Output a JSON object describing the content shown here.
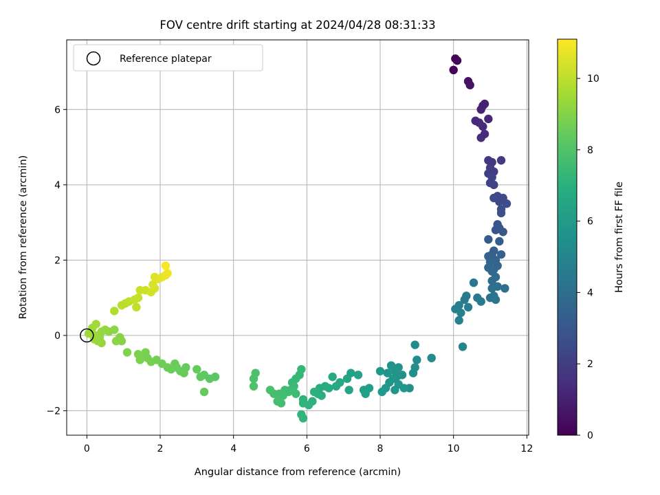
{
  "chart_data": {
    "type": "scatter",
    "title": "FOV centre drift starting at 2024/04/28 08:31:33",
    "xlabel": "Angular distance from reference (arcmin)",
    "ylabel": "Rotation from reference (arcmin)",
    "xlim": [
      -0.55,
      12.05
    ],
    "ylim": [
      -2.65,
      7.85
    ],
    "xticks": [
      0,
      2,
      4,
      6,
      8,
      10,
      12
    ],
    "xtick_labels": [
      "0",
      "2",
      "4",
      "6",
      "8",
      "10",
      "12"
    ],
    "yticks": [
      -2,
      0,
      2,
      4,
      6
    ],
    "ytick_labels": [
      "−2",
      "0",
      "2",
      "4",
      "6"
    ],
    "grid": true,
    "legend": {
      "placement": "upper-left",
      "entries": [
        "Reference platepar"
      ]
    },
    "reference_point": [
      0,
      0
    ],
    "colorbar": {
      "label": "Hours from first FF file",
      "range": [
        0,
        11.1
      ],
      "ticks": [
        0,
        2,
        4,
        6,
        8,
        10
      ],
      "tick_labels": [
        "0",
        "2",
        "4",
        "6",
        "8",
        "10"
      ],
      "colormap": "viridis"
    },
    "points": [
      {
        "x": 10.0,
        "y": 7.05,
        "t": 0.05
      },
      {
        "x": 10.05,
        "y": 7.35,
        "t": 0.1
      },
      {
        "x": 10.1,
        "y": 7.3,
        "t": 0.15
      },
      {
        "x": 10.4,
        "y": 6.75,
        "t": 0.5
      },
      {
        "x": 10.45,
        "y": 6.65,
        "t": 0.55
      },
      {
        "x": 10.8,
        "y": 6.1,
        "t": 0.95
      },
      {
        "x": 10.85,
        "y": 6.15,
        "t": 1.0
      },
      {
        "x": 10.75,
        "y": 6.0,
        "t": 1.05
      },
      {
        "x": 10.95,
        "y": 5.75,
        "t": 1.2
      },
      {
        "x": 10.6,
        "y": 5.7,
        "t": 1.25
      },
      {
        "x": 10.7,
        "y": 5.65,
        "t": 1.3
      },
      {
        "x": 10.8,
        "y": 5.55,
        "t": 1.35
      },
      {
        "x": 10.85,
        "y": 5.35,
        "t": 1.4
      },
      {
        "x": 10.75,
        "y": 5.25,
        "t": 1.45
      },
      {
        "x": 10.95,
        "y": 4.65,
        "t": 1.8
      },
      {
        "x": 11.05,
        "y": 4.6,
        "t": 1.85
      },
      {
        "x": 11.3,
        "y": 4.65,
        "t": 1.9
      },
      {
        "x": 11.0,
        "y": 4.45,
        "t": 1.95
      },
      {
        "x": 11.1,
        "y": 4.35,
        "t": 2.0
      },
      {
        "x": 10.95,
        "y": 4.3,
        "t": 2.05
      },
      {
        "x": 11.05,
        "y": 4.2,
        "t": 2.1
      },
      {
        "x": 11.0,
        "y": 4.05,
        "t": 2.15
      },
      {
        "x": 11.1,
        "y": 4.0,
        "t": 2.2
      },
      {
        "x": 11.2,
        "y": 3.7,
        "t": 2.4
      },
      {
        "x": 11.1,
        "y": 3.65,
        "t": 2.45
      },
      {
        "x": 11.35,
        "y": 3.65,
        "t": 2.5
      },
      {
        "x": 11.25,
        "y": 3.55,
        "t": 2.55
      },
      {
        "x": 11.45,
        "y": 3.5,
        "t": 2.6
      },
      {
        "x": 11.3,
        "y": 3.35,
        "t": 2.65
      },
      {
        "x": 11.3,
        "y": 3.25,
        "t": 2.7
      },
      {
        "x": 11.2,
        "y": 2.95,
        "t": 2.85
      },
      {
        "x": 11.25,
        "y": 2.85,
        "t": 2.9
      },
      {
        "x": 11.15,
        "y": 2.8,
        "t": 2.95
      },
      {
        "x": 11.35,
        "y": 2.75,
        "t": 3.0
      },
      {
        "x": 10.95,
        "y": 2.55,
        "t": 3.1
      },
      {
        "x": 11.25,
        "y": 2.5,
        "t": 3.15
      },
      {
        "x": 11.1,
        "y": 2.25,
        "t": 3.3
      },
      {
        "x": 11.05,
        "y": 2.15,
        "t": 3.35
      },
      {
        "x": 11.3,
        "y": 2.15,
        "t": 3.4
      },
      {
        "x": 10.95,
        "y": 2.1,
        "t": 3.45
      },
      {
        "x": 11.15,
        "y": 2.0,
        "t": 3.5
      },
      {
        "x": 11.0,
        "y": 1.95,
        "t": 3.55
      },
      {
        "x": 11.2,
        "y": 1.85,
        "t": 3.6
      },
      {
        "x": 10.95,
        "y": 1.8,
        "t": 3.65
      },
      {
        "x": 11.1,
        "y": 1.75,
        "t": 3.7
      },
      {
        "x": 11.05,
        "y": 1.7,
        "t": 3.75
      },
      {
        "x": 11.15,
        "y": 1.55,
        "t": 3.85
      },
      {
        "x": 11.05,
        "y": 1.45,
        "t": 3.9
      },
      {
        "x": 11.2,
        "y": 1.3,
        "t": 4.0
      },
      {
        "x": 11.4,
        "y": 1.25,
        "t": 4.05
      },
      {
        "x": 11.05,
        "y": 1.25,
        "t": 4.1
      },
      {
        "x": 11.1,
        "y": 1.05,
        "t": 4.2
      },
      {
        "x": 11.0,
        "y": 1.0,
        "t": 4.25
      },
      {
        "x": 11.15,
        "y": 0.95,
        "t": 4.3
      },
      {
        "x": 10.55,
        "y": 1.4,
        "t": 4.35
      },
      {
        "x": 10.65,
        "y": 1.0,
        "t": 4.5
      },
      {
        "x": 10.75,
        "y": 0.9,
        "t": 4.55
      },
      {
        "x": 10.35,
        "y": 1.05,
        "t": 4.6
      },
      {
        "x": 10.3,
        "y": 0.95,
        "t": 4.65
      },
      {
        "x": 10.4,
        "y": 0.75,
        "t": 4.7
      },
      {
        "x": 10.15,
        "y": 0.8,
        "t": 4.75
      },
      {
        "x": 10.05,
        "y": 0.7,
        "t": 4.8
      },
      {
        "x": 10.2,
        "y": 0.6,
        "t": 4.85
      },
      {
        "x": 10.15,
        "y": 0.4,
        "t": 4.9
      },
      {
        "x": 10.25,
        "y": -0.3,
        "t": 5.0
      },
      {
        "x": 9.4,
        "y": -0.6,
        "t": 5.3
      },
      {
        "x": 8.95,
        "y": -0.25,
        "t": 5.35
      },
      {
        "x": 9.0,
        "y": -0.65,
        "t": 5.4
      },
      {
        "x": 8.95,
        "y": -0.85,
        "t": 5.45
      },
      {
        "x": 8.9,
        "y": -1.0,
        "t": 5.5
      },
      {
        "x": 8.8,
        "y": -1.4,
        "t": 5.55
      },
      {
        "x": 8.6,
        "y": -1.05,
        "t": 5.6
      },
      {
        "x": 8.5,
        "y": -0.85,
        "t": 5.65
      },
      {
        "x": 8.3,
        "y": -0.8,
        "t": 5.7
      },
      {
        "x": 8.4,
        "y": -0.95,
        "t": 5.72
      },
      {
        "x": 8.2,
        "y": -1.0,
        "t": 5.75
      },
      {
        "x": 8.45,
        "y": -1.1,
        "t": 5.78
      },
      {
        "x": 8.35,
        "y": -1.15,
        "t": 5.8
      },
      {
        "x": 8.25,
        "y": -1.25,
        "t": 5.83
      },
      {
        "x": 8.5,
        "y": -1.3,
        "t": 5.85
      },
      {
        "x": 8.4,
        "y": -1.45,
        "t": 5.88
      },
      {
        "x": 8.15,
        "y": -1.4,
        "t": 5.9
      },
      {
        "x": 8.65,
        "y": -1.4,
        "t": 5.92
      },
      {
        "x": 8.0,
        "y": -0.95,
        "t": 5.95
      },
      {
        "x": 8.05,
        "y": -1.5,
        "t": 6.0
      },
      {
        "x": 7.7,
        "y": -1.4,
        "t": 6.2
      },
      {
        "x": 7.55,
        "y": -1.45,
        "t": 6.25
      },
      {
        "x": 7.6,
        "y": -1.55,
        "t": 6.3
      },
      {
        "x": 7.4,
        "y": -1.05,
        "t": 6.35
      },
      {
        "x": 7.2,
        "y": -1.0,
        "t": 6.4
      },
      {
        "x": 7.1,
        "y": -1.15,
        "t": 6.45
      },
      {
        "x": 7.15,
        "y": -1.45,
        "t": 6.5
      },
      {
        "x": 6.9,
        "y": -1.25,
        "t": 6.6
      },
      {
        "x": 6.8,
        "y": -1.35,
        "t": 6.65
      },
      {
        "x": 6.7,
        "y": -1.1,
        "t": 6.7
      },
      {
        "x": 6.6,
        "y": -1.4,
        "t": 6.75
      },
      {
        "x": 6.5,
        "y": -1.35,
        "t": 6.8
      },
      {
        "x": 6.35,
        "y": -1.4,
        "t": 6.85
      },
      {
        "x": 6.4,
        "y": -1.6,
        "t": 6.9
      },
      {
        "x": 6.3,
        "y": -1.55,
        "t": 6.95
      },
      {
        "x": 6.2,
        "y": -1.5,
        "t": 7.0
      },
      {
        "x": 6.15,
        "y": -1.75,
        "t": 7.05
      },
      {
        "x": 6.05,
        "y": -1.85,
        "t": 7.1
      },
      {
        "x": 5.9,
        "y": -1.7,
        "t": 7.15
      },
      {
        "x": 5.9,
        "y": -1.8,
        "t": 7.2
      },
      {
        "x": 5.85,
        "y": -2.1,
        "t": 7.25
      },
      {
        "x": 5.9,
        "y": -2.2,
        "t": 7.3
      },
      {
        "x": 5.85,
        "y": -0.9,
        "t": 7.35
      },
      {
        "x": 5.8,
        "y": -1.05,
        "t": 7.4
      },
      {
        "x": 5.7,
        "y": -1.15,
        "t": 7.45
      },
      {
        "x": 5.6,
        "y": -1.25,
        "t": 7.5
      },
      {
        "x": 5.65,
        "y": -1.35,
        "t": 7.55
      },
      {
        "x": 5.55,
        "y": -1.45,
        "t": 7.6
      },
      {
        "x": 5.7,
        "y": -1.55,
        "t": 7.62
      },
      {
        "x": 5.5,
        "y": -1.5,
        "t": 7.65
      },
      {
        "x": 5.4,
        "y": -1.45,
        "t": 7.68
      },
      {
        "x": 5.35,
        "y": -1.6,
        "t": 7.7
      },
      {
        "x": 5.3,
        "y": -1.8,
        "t": 7.72
      },
      {
        "x": 5.2,
        "y": -1.75,
        "t": 7.75
      },
      {
        "x": 5.25,
        "y": -1.55,
        "t": 7.78
      },
      {
        "x": 5.1,
        "y": -1.55,
        "t": 7.8
      },
      {
        "x": 5.0,
        "y": -1.45,
        "t": 7.82
      },
      {
        "x": 4.6,
        "y": -1.0,
        "t": 7.9
      },
      {
        "x": 4.55,
        "y": -1.15,
        "t": 7.92
      },
      {
        "x": 4.55,
        "y": -1.35,
        "t": 7.95
      },
      {
        "x": 3.5,
        "y": -1.1,
        "t": 8.2
      },
      {
        "x": 3.35,
        "y": -1.15,
        "t": 8.25
      },
      {
        "x": 3.2,
        "y": -1.05,
        "t": 8.3
      },
      {
        "x": 3.1,
        "y": -1.1,
        "t": 8.35
      },
      {
        "x": 3.0,
        "y": -0.9,
        "t": 8.4
      },
      {
        "x": 3.2,
        "y": -1.5,
        "t": 8.42
      },
      {
        "x": 2.7,
        "y": -0.85,
        "t": 8.45
      },
      {
        "x": 2.65,
        "y": -1.0,
        "t": 8.48
      },
      {
        "x": 2.55,
        "y": -0.95,
        "t": 8.5
      },
      {
        "x": 2.45,
        "y": -0.85,
        "t": 8.52
      },
      {
        "x": 2.4,
        "y": -0.75,
        "t": 8.55
      },
      {
        "x": 2.3,
        "y": -0.9,
        "t": 8.58
      },
      {
        "x": 2.2,
        "y": -0.85,
        "t": 8.6
      },
      {
        "x": 2.05,
        "y": -0.75,
        "t": 8.65
      },
      {
        "x": 1.9,
        "y": -0.65,
        "t": 8.7
      },
      {
        "x": 1.75,
        "y": -0.7,
        "t": 8.75
      },
      {
        "x": 1.65,
        "y": -0.6,
        "t": 8.78
      },
      {
        "x": 1.55,
        "y": -0.55,
        "t": 8.8
      },
      {
        "x": 1.6,
        "y": -0.45,
        "t": 8.82
      },
      {
        "x": 1.45,
        "y": -0.65,
        "t": 8.85
      },
      {
        "x": 1.4,
        "y": -0.5,
        "t": 8.88
      },
      {
        "x": 1.1,
        "y": -0.45,
        "t": 8.95
      },
      {
        "x": 0.95,
        "y": -0.15,
        "t": 9.05
      },
      {
        "x": 0.9,
        "y": -0.05,
        "t": 9.08
      },
      {
        "x": 0.8,
        "y": -0.15,
        "t": 9.1
      },
      {
        "x": 0.75,
        "y": 0.15,
        "t": 9.15
      },
      {
        "x": 0.6,
        "y": 0.1,
        "t": 9.2
      },
      {
        "x": 0.5,
        "y": 0.15,
        "t": 9.25
      },
      {
        "x": 0.4,
        "y": 0.1,
        "t": 9.3
      },
      {
        "x": 0.4,
        "y": -0.2,
        "t": 9.32
      },
      {
        "x": 0.35,
        "y": -0.05,
        "t": 9.35
      },
      {
        "x": 0.3,
        "y": -0.15,
        "t": 9.38
      },
      {
        "x": 0.25,
        "y": 0.0,
        "t": 9.4
      },
      {
        "x": 0.2,
        "y": -0.1,
        "t": 9.42
      },
      {
        "x": 0.15,
        "y": 0.2,
        "t": 9.45
      },
      {
        "x": 0.1,
        "y": 0.05,
        "t": 9.48
      },
      {
        "x": 0.25,
        "y": 0.3,
        "t": 9.5
      },
      {
        "x": 0.05,
        "y": 0.05,
        "t": 9.52
      },
      {
        "x": 0.75,
        "y": 0.65,
        "t": 9.8
      },
      {
        "x": 0.95,
        "y": 0.8,
        "t": 9.9
      },
      {
        "x": 1.05,
        "y": 0.85,
        "t": 9.95
      },
      {
        "x": 1.15,
        "y": 0.9,
        "t": 10.0
      },
      {
        "x": 1.35,
        "y": 0.75,
        "t": 10.05
      },
      {
        "x": 1.3,
        "y": 0.95,
        "t": 10.1
      },
      {
        "x": 1.4,
        "y": 1.0,
        "t": 10.15
      },
      {
        "x": 1.45,
        "y": 1.2,
        "t": 10.2
      },
      {
        "x": 1.6,
        "y": 1.2,
        "t": 10.3
      },
      {
        "x": 1.75,
        "y": 1.15,
        "t": 10.35
      },
      {
        "x": 1.85,
        "y": 1.25,
        "t": 10.4
      },
      {
        "x": 1.8,
        "y": 1.35,
        "t": 10.45
      },
      {
        "x": 1.85,
        "y": 1.55,
        "t": 10.55
      },
      {
        "x": 1.95,
        "y": 1.5,
        "t": 10.6
      },
      {
        "x": 2.05,
        "y": 1.55,
        "t": 10.65
      },
      {
        "x": 2.15,
        "y": 1.6,
        "t": 10.75
      },
      {
        "x": 2.2,
        "y": 1.65,
        "t": 10.85
      },
      {
        "x": 2.15,
        "y": 1.85,
        "t": 11.0
      }
    ]
  }
}
